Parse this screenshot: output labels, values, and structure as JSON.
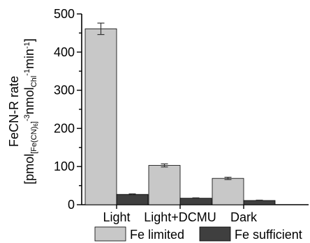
{
  "chart_data": {
    "type": "bar",
    "categories": [
      "Light",
      "Light+DCMU",
      "Dark"
    ],
    "series": [
      {
        "name": "Fe limited",
        "values": [
          461,
          103,
          69
        ],
        "errors": [
          15,
          4,
          3
        ],
        "color": "#c8c8c8"
      },
      {
        "name": "Fe sufficient",
        "values": [
          27,
          17,
          11
        ],
        "errors": [
          1.5,
          1,
          1
        ],
        "color": "#3f3f3f"
      }
    ],
    "ylim": [
      0,
      500
    ],
    "yticks": [
      0,
      100,
      200,
      300,
      400,
      500
    ],
    "ylabel": {
      "line1": "FeCN-R rate",
      "line2_p1": "[pmol",
      "line2_sub1": "[Fe(CN)",
      "line2_sub1b": "6",
      "line2_sub1c": "]",
      "line2_sup1": "-3",
      "line2_p2": "nmol",
      "line2_sub2": "Chl",
      "line2_sup2": "-1",
      "line2_p3": "min",
      "line2_sup3": "-1",
      "line2_p4": "]"
    },
    "legend_position": "bottom"
  }
}
